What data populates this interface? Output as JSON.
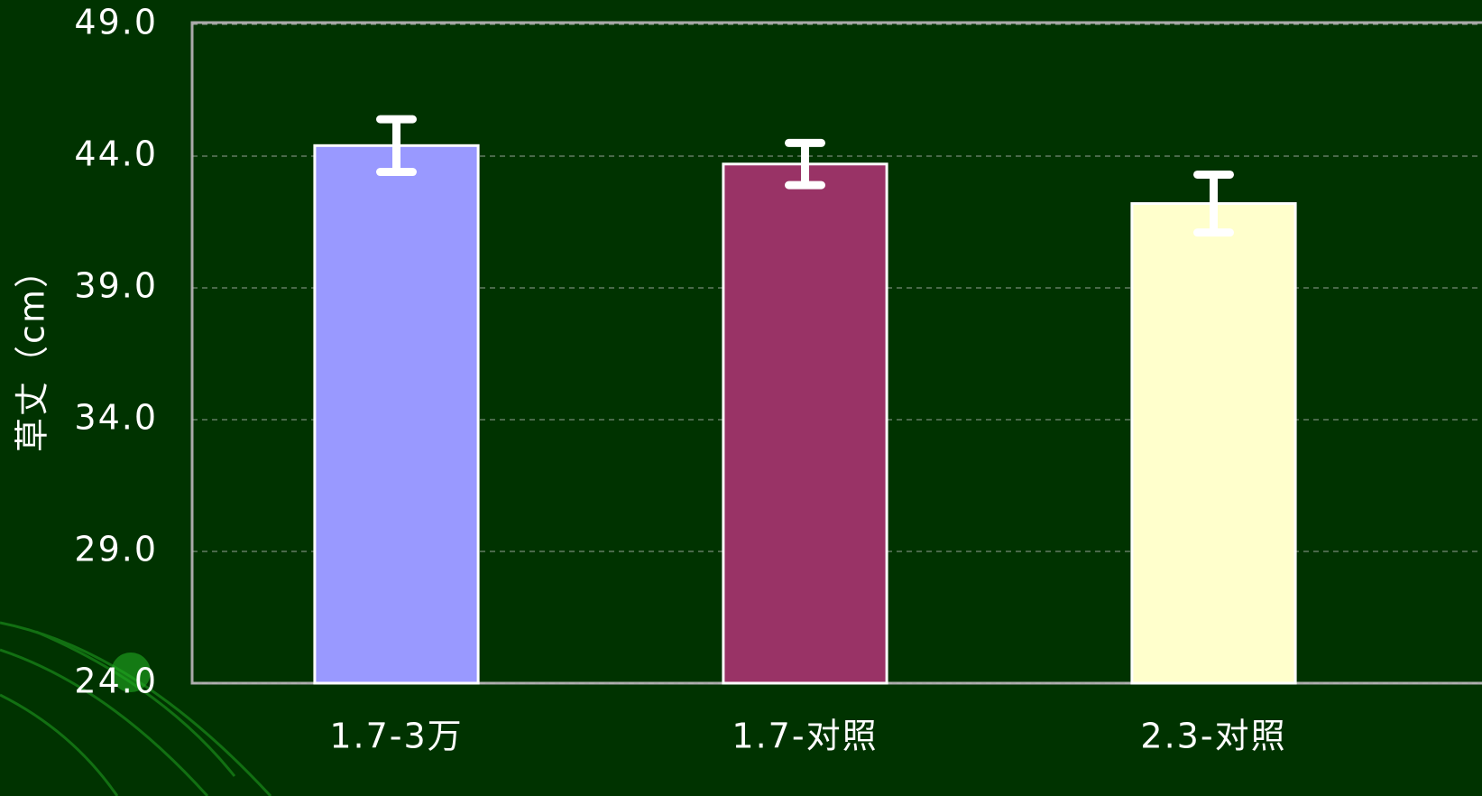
{
  "chart_data": {
    "type": "bar",
    "ylabel": "草丈（cm）",
    "categories": [
      "1.7-3万",
      "1.7-对照",
      "2.3-对照"
    ],
    "values": [
      44.4,
      43.7,
      42.2
    ],
    "errors": [
      1.0,
      0.8,
      1.1
    ],
    "colors": [
      "#9999ff",
      "#993366",
      "#ffffcc"
    ],
    "ylim": [
      24,
      49
    ],
    "yticks": [
      {
        "value": 24,
        "label": "24.0"
      },
      {
        "value": 29,
        "label": "29.0"
      },
      {
        "value": 34,
        "label": "34.0"
      },
      {
        "value": 39,
        "label": "39.0"
      },
      {
        "value": 44,
        "label": "44.0"
      },
      {
        "value": 49,
        "label": "49.0"
      }
    ],
    "grid": true
  }
}
